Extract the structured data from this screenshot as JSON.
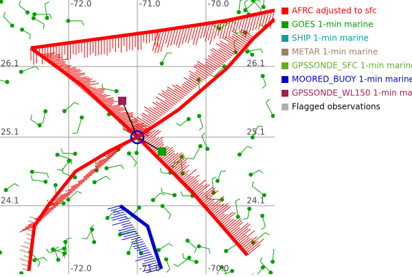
{
  "map": {
    "top_labels": [
      "-72.0",
      "-71.0",
      "-70.0"
    ],
    "bottom_labels": [
      "-72.0",
      "-71.0",
      "-70.0"
    ],
    "left_labels": [
      "26.1",
      "25.1",
      "24.1"
    ],
    "right_labels": [
      "26.1",
      "25.1",
      "24.1"
    ]
  },
  "legend": [
    {
      "label": "AFRC adjusted to sfc",
      "color": "#ff0000"
    },
    {
      "label": "GOES 1-min marine",
      "color": "#00a000"
    },
    {
      "label": "SHIP 1-min marine",
      "color": "#00a0a0"
    },
    {
      "label": "METAR 1-min marine",
      "color": "#a08060"
    },
    {
      "label": "GPSSONDE_SFC 1-min marine",
      "color": "#60b020"
    },
    {
      "label": "MOORED_BUOY 1-min marine",
      "color": "#0000c0"
    },
    {
      "label": "GPSSONDE_WL150 1-min mar",
      "color": "#a02050"
    },
    {
      "label": "Flagged observations",
      "color": "#b0b0b0"
    }
  ]
}
